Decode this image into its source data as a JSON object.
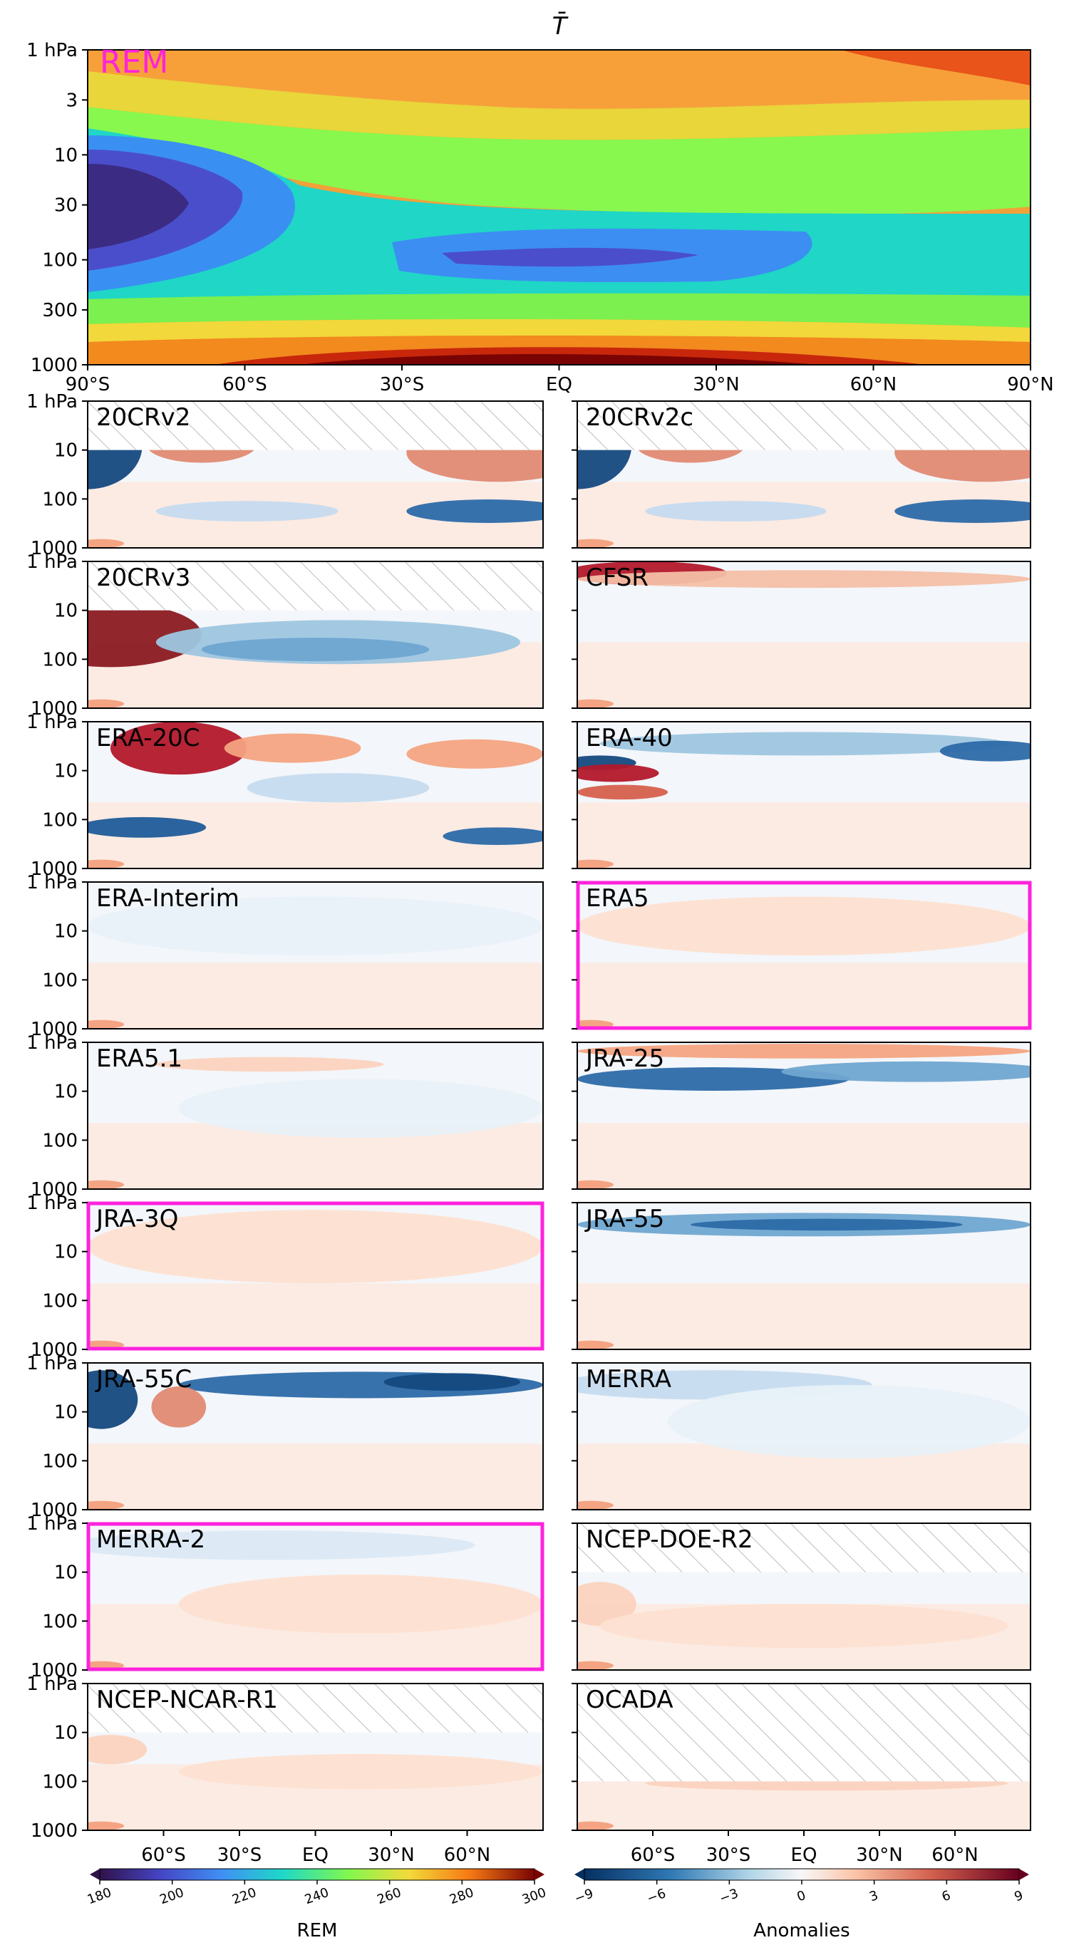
{
  "figure": {
    "title": "T̄",
    "y_ticks": [
      "1 hPa",
      "10",
      "100",
      "1000"
    ],
    "y_ticks_top": [
      "1 hPa",
      "3",
      "10",
      "30",
      "100",
      "300",
      "1000"
    ],
    "x_ticks_top": [
      "90°S",
      "60°S",
      "30°S",
      "EQ",
      "30°N",
      "60°N",
      "90°N"
    ],
    "x_ticks_bottom": [
      "60°S",
      "30°S",
      "EQ",
      "30°N",
      "60°N"
    ],
    "colorbar_rem": {
      "label": "REM",
      "ticks": [
        "180",
        "200",
        "220",
        "240",
        "260",
        "280",
        "300"
      ]
    },
    "colorbar_anom": {
      "label": "Anomalies",
      "ticks": [
        "−9",
        "−6",
        "−3",
        "0",
        "3",
        "6",
        "9"
      ]
    },
    "colors": {
      "highlight": "#ff22dd",
      "hatch": "#bbbbbb"
    }
  },
  "chart_data": [
    {
      "type": "heatmap",
      "name": "REM",
      "title": "T̄",
      "xlim": [
        -90,
        90
      ],
      "ylim_hPa": [
        1000,
        1
      ],
      "y_scale": "log",
      "colorbar_range": [
        180,
        300
      ],
      "approx_values_K": {
        "lat": [
          -90,
          -60,
          -30,
          0,
          30,
          60,
          90
        ],
        "levels_hPa": [
          1,
          3,
          10,
          30,
          100,
          300,
          1000
        ],
        "values": [
          [
            255,
            262,
            268,
            272,
            272,
            274,
            280
          ],
          [
            238,
            245,
            252,
            258,
            258,
            260,
            262
          ],
          [
            210,
            222,
            232,
            236,
            236,
            238,
            240
          ],
          [
            185,
            208,
            225,
            228,
            228,
            230,
            232
          ],
          [
            200,
            215,
            216,
            205,
            205,
            215,
            220
          ],
          [
            240,
            245,
            250,
            252,
            252,
            248,
            240
          ],
          [
            255,
            270,
            290,
            300,
            298,
            280,
            250
          ]
        ]
      }
    },
    {
      "type": "heatmap",
      "name": "20CRv2",
      "label": "20CRv2",
      "highlight": false,
      "hatch_top_to_hPa": 10
    },
    {
      "type": "heatmap",
      "name": "20CRv2c",
      "label": "20CRv2c",
      "highlight": false,
      "hatch_top_to_hPa": 10
    },
    {
      "type": "heatmap",
      "name": "20CRv3",
      "label": "20CRv3",
      "highlight": false,
      "hatch_top_to_hPa": 10
    },
    {
      "type": "heatmap",
      "name": "CFSR",
      "label": "CFSR",
      "highlight": false
    },
    {
      "type": "heatmap",
      "name": "ERA-20C",
      "label": "ERA-20C",
      "highlight": false
    },
    {
      "type": "heatmap",
      "name": "ERA-40",
      "label": "ERA-40",
      "highlight": false
    },
    {
      "type": "heatmap",
      "name": "ERA-Interim",
      "label": "ERA-Interim",
      "highlight": false
    },
    {
      "type": "heatmap",
      "name": "ERA5",
      "label": "ERA5",
      "highlight": true
    },
    {
      "type": "heatmap",
      "name": "ERA5.1",
      "label": "ERA5.1",
      "highlight": false
    },
    {
      "type": "heatmap",
      "name": "JRA-25",
      "label": "JRA-25",
      "highlight": false
    },
    {
      "type": "heatmap",
      "name": "JRA-3Q",
      "label": "JRA-3Q",
      "highlight": true
    },
    {
      "type": "heatmap",
      "name": "JRA-55",
      "label": "JRA-55",
      "highlight": false
    },
    {
      "type": "heatmap",
      "name": "JRA-55C",
      "label": "JRA-55C",
      "highlight": false
    },
    {
      "type": "heatmap",
      "name": "MERRA",
      "label": "MERRA",
      "highlight": false
    },
    {
      "type": "heatmap",
      "name": "MERRA-2",
      "label": "MERRA-2",
      "highlight": true
    },
    {
      "type": "heatmap",
      "name": "NCEP-DOE-R2",
      "label": "NCEP-DOE-R2",
      "highlight": false,
      "hatch_top_to_hPa": 10
    },
    {
      "type": "heatmap",
      "name": "NCEP-NCAR-R1",
      "label": "NCEP-NCAR-R1",
      "highlight": false,
      "hatch_top_to_hPa": 10
    },
    {
      "type": "heatmap",
      "name": "OCADA",
      "label": "OCADA",
      "highlight": false,
      "hatch_top_to_hPa": 100
    }
  ]
}
